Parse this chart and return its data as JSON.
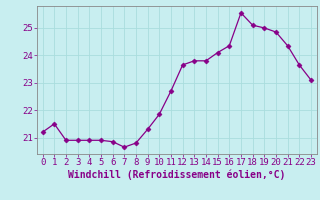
{
  "x": [
    0,
    1,
    2,
    3,
    4,
    5,
    6,
    7,
    8,
    9,
    10,
    11,
    12,
    13,
    14,
    15,
    16,
    17,
    18,
    19,
    20,
    21,
    22,
    23
  ],
  "y": [
    21.2,
    21.5,
    20.9,
    20.9,
    20.9,
    20.9,
    20.85,
    20.65,
    20.8,
    21.3,
    21.85,
    22.7,
    23.65,
    23.8,
    23.8,
    24.1,
    24.35,
    25.55,
    25.1,
    25.0,
    24.85,
    24.35,
    23.65,
    23.1
  ],
  "line_color": "#880088",
  "marker": "D",
  "marker_size": 2.5,
  "bg_color": "#c8eef0",
  "grid_color": "#aadddd",
  "xlabel": "Windchill (Refroidissement éolien,°C)",
  "ylim": [
    20.4,
    25.8
  ],
  "xlim": [
    -0.5,
    23.5
  ],
  "yticks": [
    21,
    22,
    23,
    24,
    25
  ],
  "xticks": [
    0,
    1,
    2,
    3,
    4,
    5,
    6,
    7,
    8,
    9,
    10,
    11,
    12,
    13,
    14,
    15,
    16,
    17,
    18,
    19,
    20,
    21,
    22,
    23
  ],
  "label_color": "#880088",
  "font_size": 6.5,
  "xlabel_fontsize": 7
}
